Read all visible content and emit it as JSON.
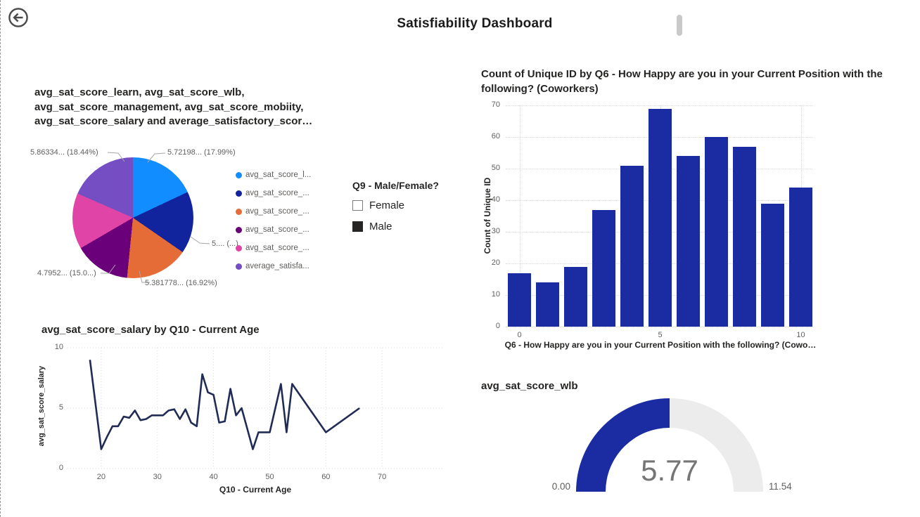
{
  "header": {
    "title": "Satisfiability Dashboard"
  },
  "pie_visual": {
    "title": "avg_sat_score_learn, avg_sat_score_wlb, avg_sat_score_management, avg_sat_score_mobiity, avg_sat_score_salary and average_satisfactory_scor…",
    "chart_data": {
      "type": "pie",
      "legend_position": "right",
      "slices": [
        {
          "legend": "avg_sat_score_l...",
          "color": "#118DFF",
          "pct": 17.99,
          "callout": "5.72198... (17.99%)"
        },
        {
          "legend": "avg_sat_score_...",
          "color": "#12239E",
          "pct": 16.65,
          "callout": "5.... (...)"
        },
        {
          "legend": "avg_sat_score_...",
          "color": "#E66C37",
          "pct": 16.92,
          "callout": "5.381778... (16.92%)"
        },
        {
          "legend": "avg_sat_score_...",
          "color": "#6B007B",
          "pct": 15.05,
          "callout": "4.7952... (15.0...)"
        },
        {
          "legend": "avg_sat_score_...",
          "color": "#E044A7",
          "pct": 14.95,
          "callout": ""
        },
        {
          "legend": "average_satisfa...",
          "color": "#744EC2",
          "pct": 18.44,
          "callout": "5.86334... (18.44%)"
        }
      ]
    }
  },
  "slicer": {
    "title": "Q9 - Male/Female?",
    "options": [
      {
        "label": "Female",
        "checked": false
      },
      {
        "label": "Male",
        "checked": true
      }
    ]
  },
  "bar_visual": {
    "title": "Count of Unique ID by Q6 - How Happy are you in your Current Position with the following? (Coworkers)",
    "chart_data": {
      "type": "bar",
      "categories": [
        0,
        1,
        2,
        3,
        4,
        5,
        6,
        7,
        8,
        9,
        10
      ],
      "values": [
        17,
        14,
        19,
        37,
        51,
        69,
        54,
        60,
        57,
        39,
        44
      ],
      "xlabel": "Q6 - How Happy are you in your Current Position with the following? (Cowo…",
      "ylabel": "Count of Unique ID",
      "ylim": [
        0,
        70
      ],
      "yticks": [
        0,
        10,
        20,
        30,
        40,
        50,
        60,
        70
      ],
      "xticks": [
        0,
        5,
        10
      ],
      "bar_color": "#1B2CA3",
      "grid": "dotted"
    }
  },
  "line_visual": {
    "title": "avg_sat_score_salary by Q10 - Current Age",
    "chart_data": {
      "type": "line",
      "x": [
        18,
        20,
        21,
        22,
        23,
        24,
        25,
        26,
        27,
        28,
        29,
        30,
        31,
        32,
        33,
        34,
        35,
        36,
        37,
        38,
        39,
        40,
        41,
        42,
        43,
        44,
        45,
        46,
        47,
        48,
        49,
        50,
        52,
        53,
        54,
        60,
        66
      ],
      "y": [
        9.0,
        1.6,
        2.6,
        3.5,
        3.5,
        4.3,
        4.2,
        4.8,
        4.0,
        4.1,
        4.4,
        4.4,
        4.4,
        4.8,
        4.9,
        4.1,
        4.9,
        3.8,
        3.5,
        7.8,
        6.3,
        6.1,
        3.8,
        3.9,
        6.6,
        4.4,
        5.0,
        3.3,
        1.6,
        3.0,
        3.0,
        3.0,
        7.0,
        3.0,
        7.0,
        3.0,
        5.0
      ],
      "xlabel": "Q10 - Current Age",
      "ylabel": "avg_sat_score_salary",
      "xlim": [
        14,
        81
      ],
      "ylim": [
        0,
        10
      ],
      "xticks": [
        20,
        30,
        40,
        50,
        60,
        70
      ],
      "yticks": [
        0,
        5,
        10
      ],
      "line_color": "#212C56",
      "grid": "dotted"
    }
  },
  "gauge_visual": {
    "title": "avg_sat_score_wlb",
    "chart_data": {
      "type": "gauge",
      "value": 5.77,
      "min": 0,
      "max": 11.54,
      "value_label": "5.77",
      "min_label": "0.00",
      "max_label": "11.54",
      "fill_color": "#1B2CA3",
      "track_color": "#ECECEC"
    }
  }
}
